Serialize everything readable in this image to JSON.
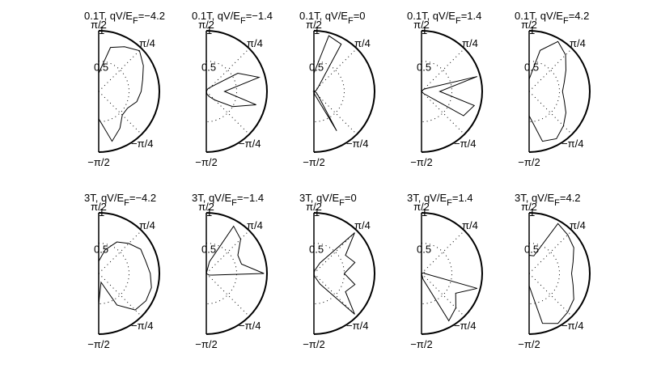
{
  "chart_data": [
    {
      "type": "polar",
      "title": [
        "0.1T, qV/E",
        "F",
        "=−4.2"
      ],
      "theta": [
        -90,
        -75,
        -60,
        -45,
        -30,
        -15,
        0,
        15,
        30,
        45,
        60,
        75,
        90
      ],
      "r": [
        0.45,
        0.85,
        0.7,
        0.55,
        0.55,
        0.65,
        0.7,
        0.75,
        0.85,
        0.95,
        0.85,
        0.75,
        0.3
      ],
      "thetalim": [
        -90,
        90
      ],
      "rlim": [
        0,
        1
      ],
      "thetaticks": [
        {
          "value": 90,
          "label": "π/2"
        },
        {
          "value": 45,
          "label": "π/4"
        },
        {
          "value": -45,
          "label": "−π/4"
        },
        {
          "value": -90,
          "label": "−π/2"
        }
      ],
      "rticks": [
        0.5,
        1
      ],
      "color": "#000000"
    },
    {
      "type": "polar",
      "title": [
        "0.1T, qV/E",
        "F",
        "=−1.4"
      ],
      "theta": [
        -90,
        -75,
        -60,
        -45,
        -30,
        -15,
        0,
        15,
        30,
        45,
        60,
        75,
        90
      ],
      "r": [
        0,
        0.05,
        0.1,
        0.2,
        0.5,
        0.85,
        0.3,
        0.9,
        0.6,
        0.1,
        0.05,
        0,
        0
      ],
      "thetalim": [
        -90,
        90
      ],
      "rlim": [
        0,
        1
      ],
      "thetaticks": [
        {
          "value": 90,
          "label": "π/2"
        },
        {
          "value": 45,
          "label": "π/4"
        },
        {
          "value": -45,
          "label": "−π/4"
        },
        {
          "value": -90,
          "label": "−π/2"
        }
      ],
      "rticks": [
        0.5,
        1
      ],
      "color": "#000000"
    },
    {
      "type": "polar",
      "title": [
        "0.1T, qV/E",
        "F",
        "=0"
      ],
      "theta": [
        -90,
        -75,
        -60,
        -45,
        -30,
        -15,
        0,
        15,
        30,
        45,
        60,
        75,
        90
      ],
      "r": [
        0,
        0.05,
        0.75,
        0.1,
        0.05,
        0.02,
        0,
        0.02,
        0.05,
        0.1,
        0.9,
        0.95,
        0.3
      ],
      "thetalim": [
        -90,
        90
      ],
      "rlim": [
        0,
        1
      ],
      "thetaticks": [
        {
          "value": 90,
          "label": "π/2"
        },
        {
          "value": 45,
          "label": "π/4"
        },
        {
          "value": -45,
          "label": "−π/4"
        },
        {
          "value": -90,
          "label": "−π/2"
        }
      ],
      "rticks": [
        0.5,
        1
      ],
      "color": "#000000"
    },
    {
      "type": "polar",
      "title": [
        "0.1T, qV/E",
        "F",
        "=1.4"
      ],
      "theta": [
        -90,
        -75,
        -60,
        -45,
        -30,
        -15,
        0,
        15,
        30,
        45,
        60,
        75,
        90
      ],
      "r": [
        0,
        0,
        0,
        0.05,
        0.8,
        0.9,
        0.3,
        0.95,
        0.1,
        0.05,
        0,
        0,
        0
      ],
      "thetalim": [
        -90,
        90
      ],
      "rlim": [
        0,
        1
      ],
      "thetaticks": [
        {
          "value": 90,
          "label": "π/2"
        },
        {
          "value": 45,
          "label": "π/4"
        },
        {
          "value": -45,
          "label": "−π/4"
        },
        {
          "value": -90,
          "label": "−π/2"
        }
      ],
      "rticks": [
        0.5,
        1
      ],
      "color": "#000000"
    },
    {
      "type": "polar",
      "title": [
        "0.1T, qV/E",
        "F",
        "=4.2"
      ],
      "theta": [
        -90,
        -75,
        -60,
        -45,
        -30,
        -15,
        0,
        15,
        30,
        45,
        60,
        75,
        90
      ],
      "r": [
        0.4,
        0.85,
        0.9,
        0.8,
        0.7,
        0.6,
        0.55,
        0.6,
        0.7,
        0.85,
        0.95,
        0.7,
        0.2
      ],
      "thetalim": [
        -90,
        90
      ],
      "rlim": [
        0,
        1
      ],
      "thetaticks": [
        {
          "value": 90,
          "label": "π/2"
        },
        {
          "value": 45,
          "label": "π/4"
        },
        {
          "value": -45,
          "label": "−π/4"
        },
        {
          "value": -90,
          "label": "−π/2"
        }
      ],
      "rticks": [
        0.5,
        1
      ],
      "color": "#000000"
    },
    {
      "type": "polar",
      "title": [
        "3T, qV/E",
        "F",
        "=−4.2"
      ],
      "theta": [
        -90,
        -75,
        -60,
        -45,
        -30,
        -15,
        0,
        15,
        30,
        45,
        60,
        75,
        90
      ],
      "r": [
        0.5,
        0.15,
        0.6,
        0.85,
        0.9,
        0.9,
        0.85,
        0.8,
        0.8,
        0.7,
        0.6,
        0.4,
        0.2
      ],
      "thetalim": [
        -90,
        90
      ],
      "rlim": [
        0,
        1
      ],
      "thetaticks": [
        {
          "value": 90,
          "label": "π/2"
        },
        {
          "value": 45,
          "label": "π/4"
        },
        {
          "value": -45,
          "label": "−π/4"
        },
        {
          "value": -90,
          "label": "−π/2"
        }
      ],
      "rticks": [
        0.5,
        1
      ],
      "color": "#000000"
    },
    {
      "type": "polar",
      "title": [
        "3T, qV/E",
        "F",
        "=−1.4"
      ],
      "theta": [
        -90,
        -75,
        -60,
        -45,
        -30,
        -15,
        0,
        15,
        30,
        45,
        60,
        75,
        90
      ],
      "r": [
        0,
        0,
        0,
        0,
        0.05,
        0.1,
        0.95,
        0.6,
        0.6,
        0.8,
        0.9,
        0.2,
        0
      ],
      "thetalim": [
        -90,
        90
      ],
      "rlim": [
        0,
        1
      ],
      "thetaticks": [
        {
          "value": 90,
          "label": "π/2"
        },
        {
          "value": 45,
          "label": "π/4"
        },
        {
          "value": -45,
          "label": "−π/4"
        },
        {
          "value": -90,
          "label": "−π/2"
        }
      ],
      "rticks": [
        0.5,
        1
      ],
      "color": "#000000"
    },
    {
      "type": "polar",
      "title": [
        "3T, qV/E",
        "F",
        "=0"
      ],
      "theta": [
        -90,
        -75,
        -60,
        -45,
        -30,
        -15,
        0,
        15,
        30,
        45,
        60,
        75,
        90
      ],
      "r": [
        0,
        0.05,
        0.2,
        0.95,
        0.6,
        0.7,
        0.5,
        0.7,
        0.6,
        0.95,
        0.2,
        0.05,
        0
      ],
      "thetalim": [
        -90,
        90
      ],
      "rlim": [
        0,
        1
      ],
      "thetaticks": [
        {
          "value": 90,
          "label": "π/2"
        },
        {
          "value": 45,
          "label": "π/4"
        },
        {
          "value": -45,
          "label": "−π/4"
        },
        {
          "value": -90,
          "label": "−π/2"
        }
      ],
      "rticks": [
        0.5,
        1
      ],
      "color": "#000000"
    },
    {
      "type": "polar",
      "title": [
        "3T, qV/E",
        "F",
        "=1.4"
      ],
      "theta": [
        -90,
        -75,
        -60,
        -45,
        -30,
        -15,
        0,
        15,
        30,
        45,
        60,
        75,
        90
      ],
      "r": [
        0,
        0.1,
        0.9,
        0.8,
        0.65,
        0.95,
        0.05,
        0.05,
        0,
        0,
        0,
        0,
        0
      ],
      "thetalim": [
        -90,
        90
      ],
      "rlim": [
        0,
        1
      ],
      "thetaticks": [
        {
          "value": 90,
          "label": "π/2"
        },
        {
          "value": 45,
          "label": "π/4"
        },
        {
          "value": -45,
          "label": "−π/4"
        },
        {
          "value": -90,
          "label": "−π/2"
        }
      ],
      "rticks": [
        0.5,
        1
      ],
      "color": "#000000"
    },
    {
      "type": "polar",
      "title": [
        "3T, qV/E",
        "F",
        "=4.2"
      ],
      "theta": [
        -90,
        -75,
        -60,
        -45,
        -30,
        -15,
        0,
        15,
        30,
        45,
        60,
        75,
        90
      ],
      "r": [
        0.2,
        0.85,
        0.95,
        0.9,
        0.85,
        0.75,
        0.7,
        0.75,
        0.85,
        0.9,
        0.95,
        0.3,
        0.3
      ],
      "thetalim": [
        -90,
        90
      ],
      "rlim": [
        0,
        1
      ],
      "thetaticks": [
        {
          "value": 90,
          "label": "π/2"
        },
        {
          "value": 45,
          "label": "π/4"
        },
        {
          "value": -45,
          "label": "−π/4"
        },
        {
          "value": -90,
          "label": "−π/2"
        }
      ],
      "rticks": [
        0.5,
        1
      ],
      "color": "#000000"
    }
  ]
}
